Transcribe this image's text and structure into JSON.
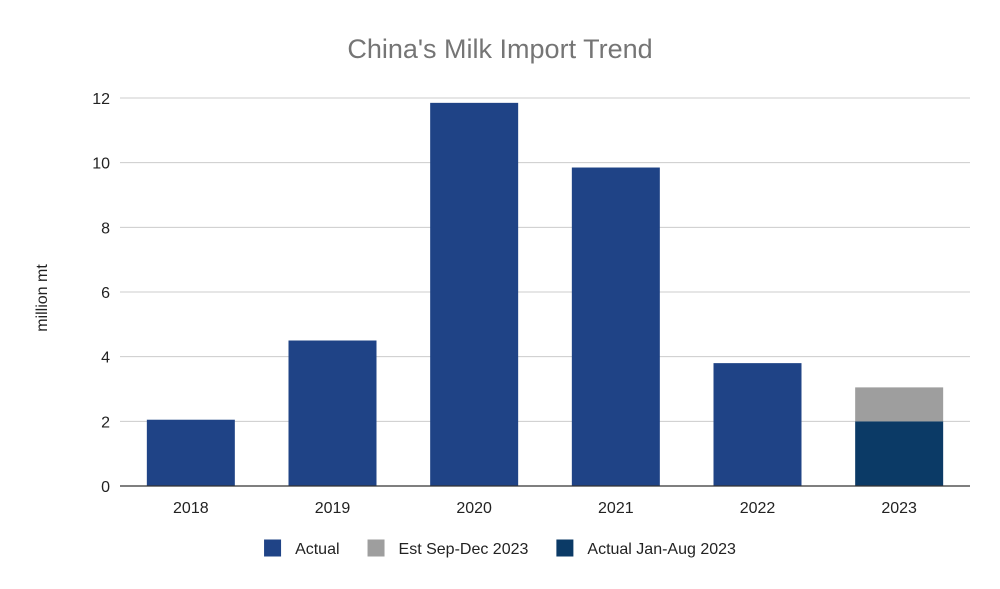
{
  "chart_data": {
    "type": "bar",
    "title": "China's Milk Import Trend",
    "xlabel": "",
    "ylabel": "million mt",
    "categories": [
      "2018",
      "2019",
      "2020",
      "2021",
      "2022",
      "2023"
    ],
    "series": [
      {
        "name": "Actual",
        "color": "#1f4386",
        "values": [
          2.05,
          4.5,
          11.85,
          9.85,
          3.8,
          null
        ]
      },
      {
        "name": "Actual Jan-Aug 2023",
        "color": "#0b3a66",
        "values": [
          null,
          null,
          null,
          null,
          null,
          2.0
        ]
      },
      {
        "name": "Est Sep-Dec 2023",
        "color": "#9e9e9e",
        "values": [
          null,
          null,
          null,
          null,
          null,
          1.05
        ]
      }
    ],
    "stacked": true,
    "legend_order": [
      "Actual",
      "Est Sep-Dec 2023",
      "Actual Jan-Aug 2023"
    ],
    "legend_position": "bottom",
    "ylim": [
      0,
      12
    ],
    "yticks": [
      0,
      2,
      4,
      6,
      8,
      10,
      12
    ],
    "grid": true
  }
}
